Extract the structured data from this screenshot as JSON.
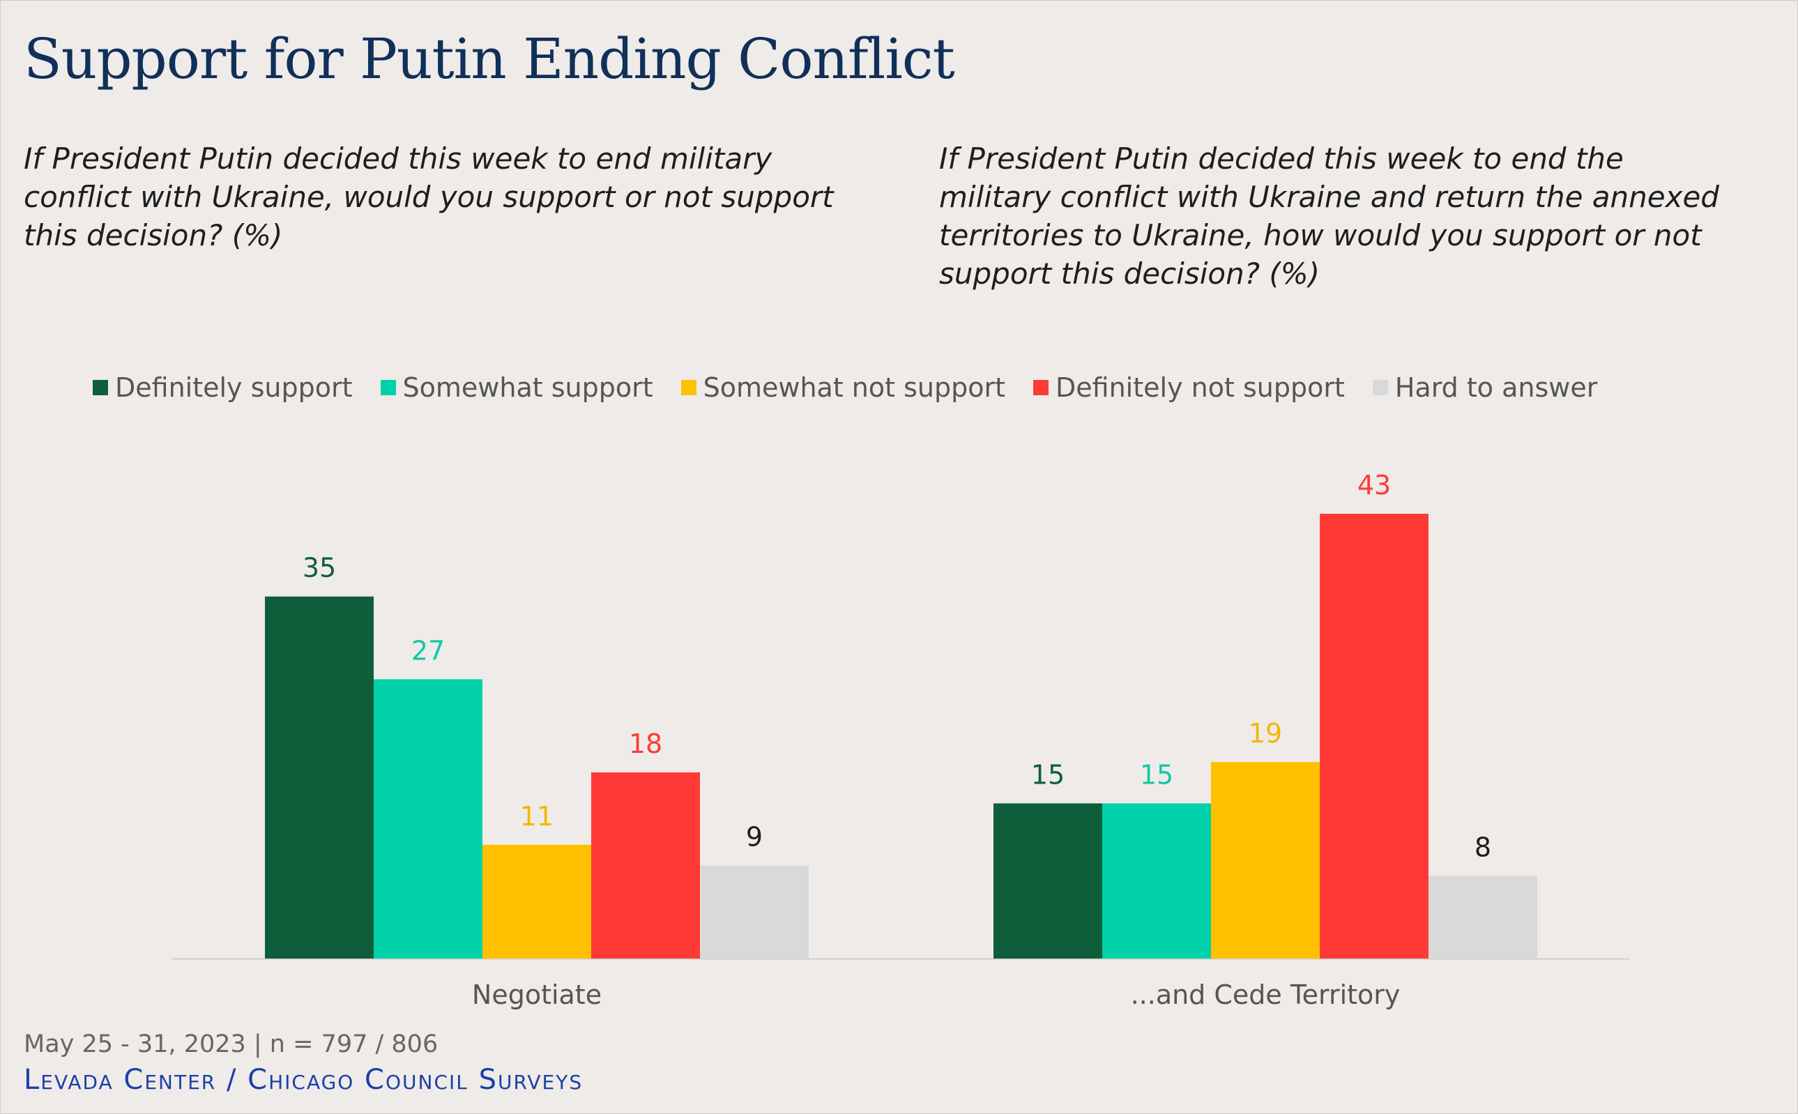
{
  "title": "Support for Putin Ending Conflict",
  "subtitles": {
    "left": "If President Putin decided this week to end military conflict with Ukraine, would you support or not support this decision? (%)",
    "right": "If President Putin decided this week to end the military conflict with Ukraine and return the annexed territories to Ukraine, how would you support or not support this decision? (%)"
  },
  "footer": {
    "date": "May 25 - 31, 2023 | n = 797 / 806",
    "source": "Levada Center / Chicago Council Surveys"
  },
  "chart_data": {
    "type": "bar",
    "categories": [
      "Negotiate",
      "...and Cede Territory"
    ],
    "series": [
      {
        "name": "Definitely support",
        "color": "#0e5e3c",
        "label_color": "#0e5e3c",
        "values": [
          35,
          15
        ]
      },
      {
        "name": "Somewhat support",
        "color": "#00d1a8",
        "label_color": "#12c7a4",
        "values": [
          27,
          15
        ]
      },
      {
        "name": "Somewhat not support",
        "color": "#ffc000",
        "label_color": "#f2b800",
        "values": [
          11,
          19
        ]
      },
      {
        "name": "Definitely not support",
        "color": "#ff3a36",
        "label_color": "#ff3a36",
        "values": [
          18,
          43
        ]
      },
      {
        "name": "Hard to answer",
        "color": "#d9d9d9",
        "label_color": "#1e1e1e",
        "values": [
          9,
          8
        ]
      }
    ],
    "ylim": [
      0,
      43
    ],
    "legend_position": "top",
    "grid": false,
    "data_labels": true
  }
}
